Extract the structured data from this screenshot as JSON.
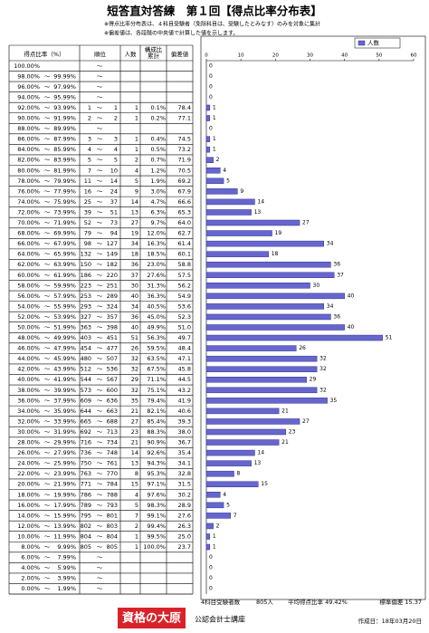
{
  "header": {
    "title": "短答直対答練　第１回【得点比率分布表】",
    "notes": [
      "※得点比率分布表は、４科目受験者（免除科目は、受験したとみなす）のみを対象に集計",
      "※偏差値は、各段階の中央値で計算した値を示します。"
    ]
  },
  "table": {
    "columns": [
      "得点比率（%）",
      "順位",
      "人数",
      "構成比",
      "累計",
      "偏差値"
    ],
    "separator": "～",
    "rows": [
      [
        "100.00%",
        null,
        null,
        null,
        null,
        null,
        null
      ],
      [
        "98.00%",
        "99.99%",
        null,
        null,
        null,
        null,
        null
      ],
      [
        "96.00%",
        "97.99%",
        null,
        null,
        null,
        null,
        null
      ],
      [
        "94.00%",
        "95.99%",
        null,
        null,
        null,
        null,
        null
      ],
      [
        "92.00%",
        "93.99%",
        1,
        1,
        1,
        "0.1%",
        "78.4"
      ],
      [
        "90.00%",
        "91.99%",
        2,
        2,
        1,
        "0.2%",
        "77.1"
      ],
      [
        "88.00%",
        "89.99%",
        null,
        null,
        null,
        null,
        null
      ],
      [
        "86.00%",
        "87.99%",
        3,
        3,
        1,
        "0.4%",
        "74.5"
      ],
      [
        "84.00%",
        "85.99%",
        4,
        4,
        1,
        "0.5%",
        "73.2"
      ],
      [
        "82.00%",
        "83.99%",
        5,
        5,
        2,
        "0.7%",
        "71.9"
      ],
      [
        "80.00%",
        "81.99%",
        7,
        10,
        4,
        "1.2%",
        "70.5"
      ],
      [
        "78.00%",
        "79.99%",
        11,
        14,
        5,
        "1.9%",
        "69.2"
      ],
      [
        "76.00%",
        "77.99%",
        16,
        24,
        9,
        "3.0%",
        "67.9"
      ],
      [
        "74.00%",
        "75.99%",
        25,
        37,
        14,
        "4.7%",
        "66.6"
      ],
      [
        "72.00%",
        "73.99%",
        39,
        51,
        13,
        "6.3%",
        "65.3"
      ],
      [
        "70.00%",
        "71.99%",
        52,
        73,
        27,
        "9.7%",
        "64.0"
      ],
      [
        "68.00%",
        "69.99%",
        79,
        94,
        19,
        "12.0%",
        "62.7"
      ],
      [
        "66.00%",
        "67.99%",
        98,
        127,
        34,
        "16.3%",
        "61.4"
      ],
      [
        "64.00%",
        "65.99%",
        132,
        149,
        18,
        "18.5%",
        "60.1"
      ],
      [
        "62.00%",
        "63.99%",
        150,
        182,
        36,
        "23.0%",
        "58.8"
      ],
      [
        "60.00%",
        "61.99%",
        186,
        220,
        37,
        "27.6%",
        "57.5"
      ],
      [
        "58.00%",
        "59.99%",
        223,
        251,
        30,
        "31.3%",
        "56.2"
      ],
      [
        "56.00%",
        "57.99%",
        253,
        289,
        40,
        "36.3%",
        "54.9"
      ],
      [
        "54.00%",
        "55.99%",
        293,
        324,
        34,
        "40.5%",
        "53.6"
      ],
      [
        "52.00%",
        "53.99%",
        327,
        357,
        36,
        "45.0%",
        "52.3"
      ],
      [
        "50.00%",
        "51.99%",
        363,
        398,
        40,
        "49.9%",
        "51.0"
      ],
      [
        "48.00%",
        "49.99%",
        403,
        451,
        51,
        "56.3%",
        "49.7"
      ],
      [
        "46.00%",
        "47.99%",
        454,
        477,
        26,
        "59.5%",
        "48.4"
      ],
      [
        "44.00%",
        "45.99%",
        480,
        507,
        32,
        "63.5%",
        "47.1"
      ],
      [
        "42.00%",
        "43.99%",
        512,
        536,
        32,
        "67.5%",
        "45.8"
      ],
      [
        "40.00%",
        "41.99%",
        544,
        567,
        29,
        "71.1%",
        "44.5"
      ],
      [
        "38.00%",
        "39.99%",
        573,
        600,
        32,
        "75.1%",
        "43.2"
      ],
      [
        "36.00%",
        "37.99%",
        609,
        636,
        35,
        "79.4%",
        "41.9"
      ],
      [
        "34.00%",
        "35.99%",
        644,
        663,
        21,
        "82.1%",
        "40.6"
      ],
      [
        "32.00%",
        "33.99%",
        665,
        688,
        27,
        "85.4%",
        "39.3"
      ],
      [
        "30.00%",
        "31.99%",
        692,
        713,
        23,
        "88.3%",
        "38.0"
      ],
      [
        "28.00%",
        "29.99%",
        716,
        734,
        21,
        "90.9%",
        "36.7"
      ],
      [
        "26.00%",
        "27.99%",
        736,
        748,
        14,
        "92.6%",
        "35.4"
      ],
      [
        "24.00%",
        "25.99%",
        750,
        761,
        13,
        "94.3%",
        "34.1"
      ],
      [
        "22.00%",
        "23.99%",
        763,
        770,
        8,
        "95.3%",
        "32.8"
      ],
      [
        "20.00%",
        "21.99%",
        771,
        784,
        15,
        "97.1%",
        "31.5"
      ],
      [
        "18.00%",
        "19.99%",
        786,
        788,
        4,
        "97.6%",
        "30.2"
      ],
      [
        "16.00%",
        "17.99%",
        789,
        793,
        5,
        "98.3%",
        "28.9"
      ],
      [
        "14.00%",
        "15.99%",
        795,
        801,
        7,
        "99.1%",
        "27.6"
      ],
      [
        "12.00%",
        "13.99%",
        802,
        803,
        2,
        "99.4%",
        "26.3"
      ],
      [
        "10.00%",
        "11.99%",
        804,
        804,
        1,
        "99.5%",
        "25.0"
      ],
      [
        "8.00%",
        "9.99%",
        805,
        805,
        1,
        "100.0%",
        "23.7"
      ],
      [
        "6.00%",
        "7.99%",
        null,
        null,
        null,
        null,
        null
      ],
      [
        "4.00%",
        "5.99%",
        null,
        null,
        null,
        null,
        null
      ],
      [
        "2.00%",
        "3.99%",
        null,
        null,
        null,
        null,
        null
      ],
      [
        "0.00%",
        "1.99%",
        null,
        null,
        null,
        null,
        null
      ]
    ]
  },
  "chart_data": {
    "type": "bar",
    "orientation": "horizontal",
    "legend": "top-right",
    "grid": false,
    "series": [
      {
        "name": "人数",
        "color": "#6666cc",
        "values": [
          0,
          0,
          0,
          0,
          1,
          1,
          0,
          1,
          1,
          2,
          4,
          5,
          9,
          14,
          13,
          27,
          19,
          34,
          18,
          36,
          37,
          30,
          40,
          34,
          36,
          40,
          51,
          26,
          32,
          32,
          29,
          32,
          35,
          21,
          27,
          23,
          21,
          14,
          13,
          8,
          15,
          4,
          5,
          7,
          2,
          1,
          1,
          0,
          0,
          0,
          0
        ]
      }
    ],
    "xlim": [
      0,
      60
    ],
    "xticks": [
      0,
      10,
      20,
      30,
      40,
      50,
      60
    ]
  },
  "footer": {
    "examinees_label": "4科目受験者数",
    "examinees": "805人",
    "average": "平均得点比率 49.42%",
    "stdev": "標準偏差 15.37",
    "logo": "資格の大原",
    "course": "公認会計士講座",
    "date": "作成日：18年03月20日"
  }
}
